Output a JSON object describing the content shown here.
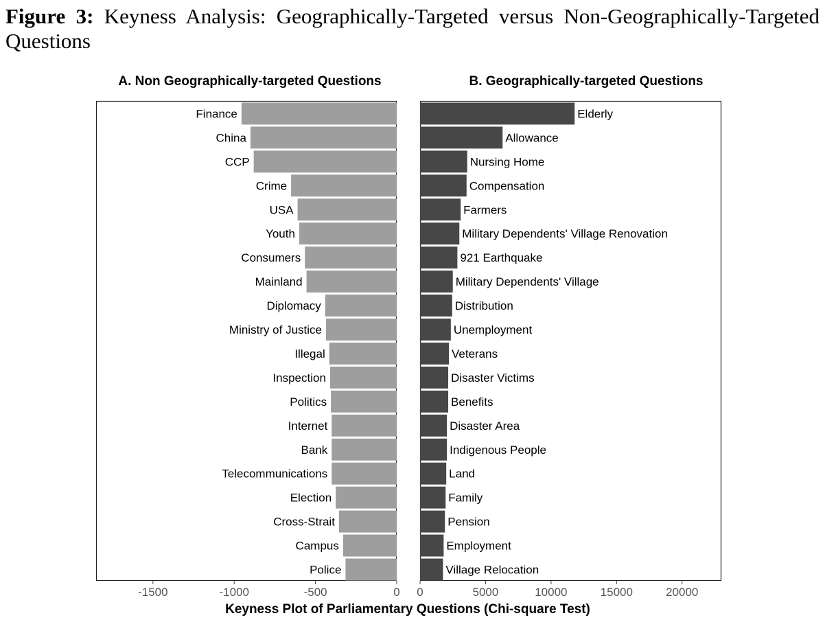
{
  "figure": {
    "number_label": "Figure 3:",
    "caption": "Keyness Analysis: Geographically-Targeted versus Non-Geographically-Targeted Questions"
  },
  "chart_data": {
    "type": "bar",
    "orientation": "horizontal",
    "x_title": "Keyness Plot of Parliamentary Questions (Chi-square Test)",
    "panels": [
      {
        "id": "A",
        "title": "A. Non Geographically-targeted Questions",
        "color": "#9e9e9e",
        "xlim": [
          -1850,
          0
        ],
        "xticks": [
          -1500,
          -1000,
          -500,
          0
        ],
        "categories": [
          "Finance",
          "China",
          "CCP",
          "Crime",
          "USA",
          "Youth",
          "Consumers",
          "Mainland",
          "Diplomacy",
          "Ministry of Justice",
          "Illegal",
          "Inspection",
          "Politics",
          "Internet",
          "Bank",
          "Telecommunications",
          "Election",
          "Cross-Strait",
          "Campus",
          "Police"
        ],
        "values": [
          -955,
          -900,
          -880,
          -650,
          -610,
          -600,
          -565,
          -555,
          -440,
          -435,
          -415,
          -410,
          -405,
          -400,
          -400,
          -400,
          -375,
          -355,
          -330,
          -315
        ]
      },
      {
        "id": "B",
        "title": "B. Geographically-targeted Questions",
        "color": "#474747",
        "xlim": [
          0,
          23000
        ],
        "xticks": [
          0,
          5000,
          10000,
          15000,
          20000
        ],
        "categories": [
          "Elderly",
          "Allowance",
          "Nursing Home",
          "Compensation",
          "Farmers",
          "Military Dependents' Village Renovation",
          "921 Earthquake",
          "Military Dependents' Village",
          "Distribution",
          "Unemployment",
          "Veterans",
          "Disaster Victims",
          "Benefits",
          "Disaster Area",
          "Indigenous People",
          "Land",
          "Family",
          "Pension",
          "Employment",
          "Village Relocation"
        ],
        "values": [
          11800,
          6300,
          3600,
          3550,
          3100,
          3000,
          2850,
          2500,
          2450,
          2350,
          2200,
          2150,
          2150,
          2050,
          2050,
          2000,
          1950,
          1900,
          1800,
          1750
        ]
      }
    ]
  }
}
